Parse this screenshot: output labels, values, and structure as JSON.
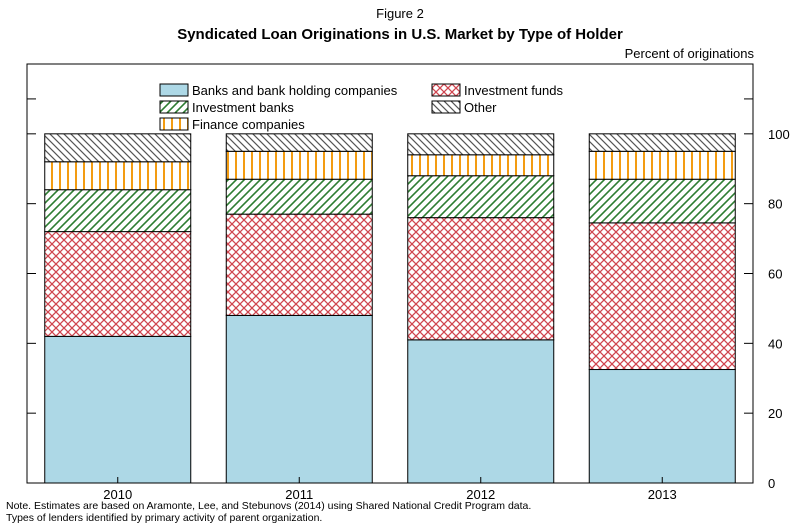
{
  "figure_label": "Figure 2",
  "unit_label": "Percent of originations",
  "note_lines": [
    "Note. Estimates are based on Aramonte, Lee, and Stebunovs (2014) using Shared National Credit Program data.",
    "Types of lenders identified by primary activity of parent organization."
  ],
  "colors": {
    "banks_fill": "#add8e6",
    "investment_funds_line": "#d0454f",
    "investment_banks_line": "#2e7d32",
    "finance_companies_line": "#f39c12",
    "other_line": "#555555"
  },
  "chart_data": {
    "type": "bar",
    "stacked": true,
    "title": "Syndicated Loan Originations in U.S. Market by Type of Holder",
    "xlabel": "",
    "ylabel": "Percent of originations",
    "categories": [
      "2010",
      "2011",
      "2012",
      "2013"
    ],
    "ylim": [
      0,
      120
    ],
    "yticks": [
      0,
      20,
      40,
      60,
      80,
      100
    ],
    "legend_position": "top",
    "series": [
      {
        "name": "Banks and bank holding companies",
        "pattern": "solid",
        "values": [
          42,
          48,
          41,
          32.5
        ]
      },
      {
        "name": "Investment funds",
        "pattern": "crosshatch",
        "values": [
          30,
          29,
          35,
          42
        ]
      },
      {
        "name": "Investment banks",
        "pattern": "diagonal",
        "values": [
          12,
          10,
          12,
          12.5
        ]
      },
      {
        "name": "Finance companies",
        "pattern": "vertical",
        "values": [
          8,
          8,
          6,
          8
        ]
      },
      {
        "name": "Other",
        "pattern": "diagonal-reverse",
        "values": [
          8,
          5,
          6,
          5
        ]
      }
    ]
  }
}
